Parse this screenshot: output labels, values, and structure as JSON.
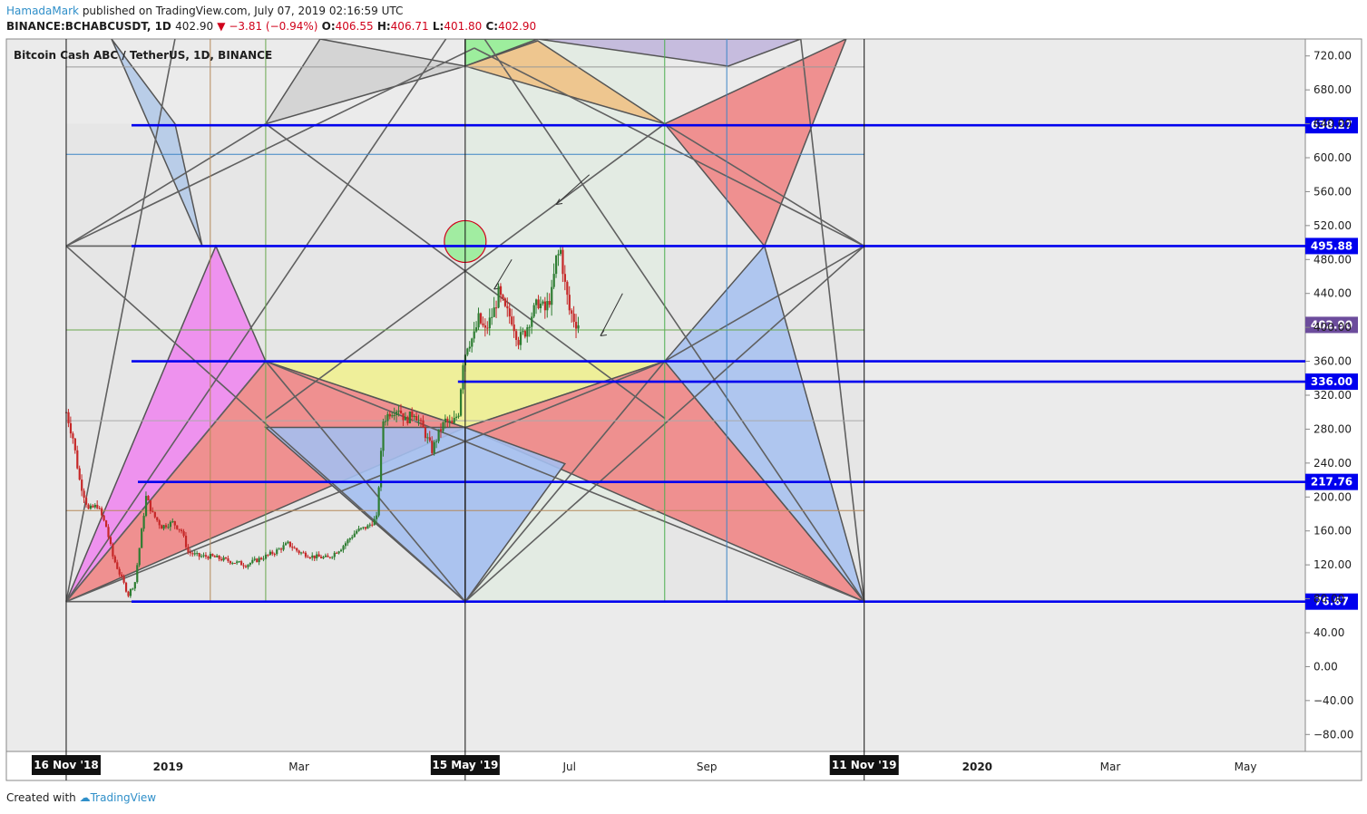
{
  "header": {
    "author": "HamadaMark",
    "published_text": "published on TradingView.com, July 07, 2019 02:16:59 UTC",
    "symbol": "BINANCE:BCHABCUSDT, 1D",
    "last": "402.90",
    "change": "▼ −3.81 (−0.94%)",
    "o_label": "O:",
    "o_value": "406.55",
    "h_label": "H:",
    "h_value": "406.71",
    "l_label": "L:",
    "l_value": "401.80",
    "c_label": "C:",
    "c_value": "402.90"
  },
  "footer": {
    "created_with": "Created with",
    "brand": "TradingView"
  },
  "colors": {
    "candle_up": "#2e7d32",
    "candle_down": "#c62828",
    "level_line": "#0000ee",
    "pink": "#ee82ee",
    "salmon": "#f08080",
    "blue": "#a4bff0",
    "yellow": "#f0f08c",
    "green": "#90ee90",
    "orange": "#f0c080",
    "purple": "#c0b4dc",
    "grey": "#d0d0d0"
  },
  "chart_data": {
    "type": "candlestick",
    "title": "Bitcoin Cash ABC / TetherUS, 1D, BINANCE",
    "y_range": [
      -100,
      740
    ],
    "y_ticks": [
      "720.00",
      "680.00",
      "640.00",
      "600.00",
      "560.00",
      "520.00",
      "480.00",
      "440.00",
      "400.00",
      "360.00",
      "320.00",
      "280.00",
      "240.00",
      "200.00",
      "160.00",
      "120.00",
      "80.00",
      "40.00",
      "0.00",
      "−40.00",
      "−80.00"
    ],
    "x_range": [
      "2018-10-20",
      "2020-05-28"
    ],
    "x_ticks": [
      {
        "date": "2019-01-01",
        "label": "2019"
      },
      {
        "date": "2019-03-01",
        "label": "Mar"
      },
      {
        "date": "2019-07-01",
        "label": "Jul"
      },
      {
        "date": "2019-09-01",
        "label": "Sep"
      },
      {
        "date": "2020-01-01",
        "label": "2020"
      },
      {
        "date": "2020-03-01",
        "label": "Mar"
      },
      {
        "date": "2020-05-01",
        "label": "May"
      }
    ],
    "marker_dates": [
      {
        "date": "2018-11-16",
        "label": "16 Nov '18"
      },
      {
        "date": "2019-05-15",
        "label": "15 May '19"
      },
      {
        "date": "2019-11-11",
        "label": "11 Nov '19"
      }
    ],
    "price_levels": [
      {
        "value": 638.27,
        "label": "638.27"
      },
      {
        "value": 495.88,
        "label": "495.88"
      },
      {
        "value": 360.0,
        "label": ""
      },
      {
        "value": 336.0,
        "label": "336.00"
      },
      {
        "value": 217.76,
        "label": "217.76"
      },
      {
        "value": 76.67,
        "label": "76.67"
      }
    ],
    "current_price": {
      "value": 402.9,
      "label": "402.90"
    },
    "price_path": [
      [
        "2018-11-16",
        300
      ],
      [
        "2018-11-19",
        270
      ],
      [
        "2018-11-22",
        220
      ],
      [
        "2018-11-26",
        185
      ],
      [
        "2018-11-30",
        190
      ],
      [
        "2018-12-04",
        165
      ],
      [
        "2018-12-07",
        130
      ],
      [
        "2018-12-10",
        110
      ],
      [
        "2018-12-14",
        85
      ],
      [
        "2018-12-17",
        100
      ],
      [
        "2018-12-20",
        160
      ],
      [
        "2018-12-22",
        200
      ],
      [
        "2018-12-25",
        180
      ],
      [
        "2018-12-29",
        165
      ],
      [
        "2019-01-03",
        170
      ],
      [
        "2019-01-07",
        160
      ],
      [
        "2019-01-10",
        135
      ],
      [
        "2019-01-15",
        130
      ],
      [
        "2019-01-20",
        130
      ],
      [
        "2019-01-28",
        125
      ],
      [
        "2019-02-05",
        120
      ],
      [
        "2019-02-12",
        128
      ],
      [
        "2019-02-18",
        135
      ],
      [
        "2019-02-24",
        145
      ],
      [
        "2019-03-01",
        135
      ],
      [
        "2019-03-07",
        130
      ],
      [
        "2019-03-14",
        128
      ],
      [
        "2019-03-20",
        140
      ],
      [
        "2019-03-27",
        160
      ],
      [
        "2019-04-01",
        165
      ],
      [
        "2019-04-05",
        175
      ],
      [
        "2019-04-08",
        290
      ],
      [
        "2019-04-11",
        300
      ],
      [
        "2019-04-15",
        305
      ],
      [
        "2019-04-18",
        290
      ],
      [
        "2019-04-22",
        300
      ],
      [
        "2019-04-26",
        280
      ],
      [
        "2019-04-30",
        255
      ],
      [
        "2019-05-03",
        275
      ],
      [
        "2019-05-06",
        290
      ],
      [
        "2019-05-09",
        285
      ],
      [
        "2019-05-12",
        300
      ],
      [
        "2019-05-14",
        360
      ],
      [
        "2019-05-16",
        380
      ],
      [
        "2019-05-19",
        390
      ],
      [
        "2019-05-21",
        410
      ],
      [
        "2019-05-24",
        395
      ],
      [
        "2019-05-28",
        420
      ],
      [
        "2019-05-30",
        440
      ],
      [
        "2019-06-02",
        420
      ],
      [
        "2019-06-05",
        410
      ],
      [
        "2019-06-08",
        385
      ],
      [
        "2019-06-11",
        395
      ],
      [
        "2019-06-14",
        415
      ],
      [
        "2019-06-17",
        430
      ],
      [
        "2019-06-20",
        420
      ],
      [
        "2019-06-23",
        440
      ],
      [
        "2019-06-25",
        480
      ],
      [
        "2019-06-27",
        490
      ],
      [
        "2019-06-29",
        450
      ],
      [
        "2019-07-01",
        420
      ],
      [
        "2019-07-04",
        405
      ],
      [
        "2019-07-06",
        402.9
      ]
    ]
  }
}
